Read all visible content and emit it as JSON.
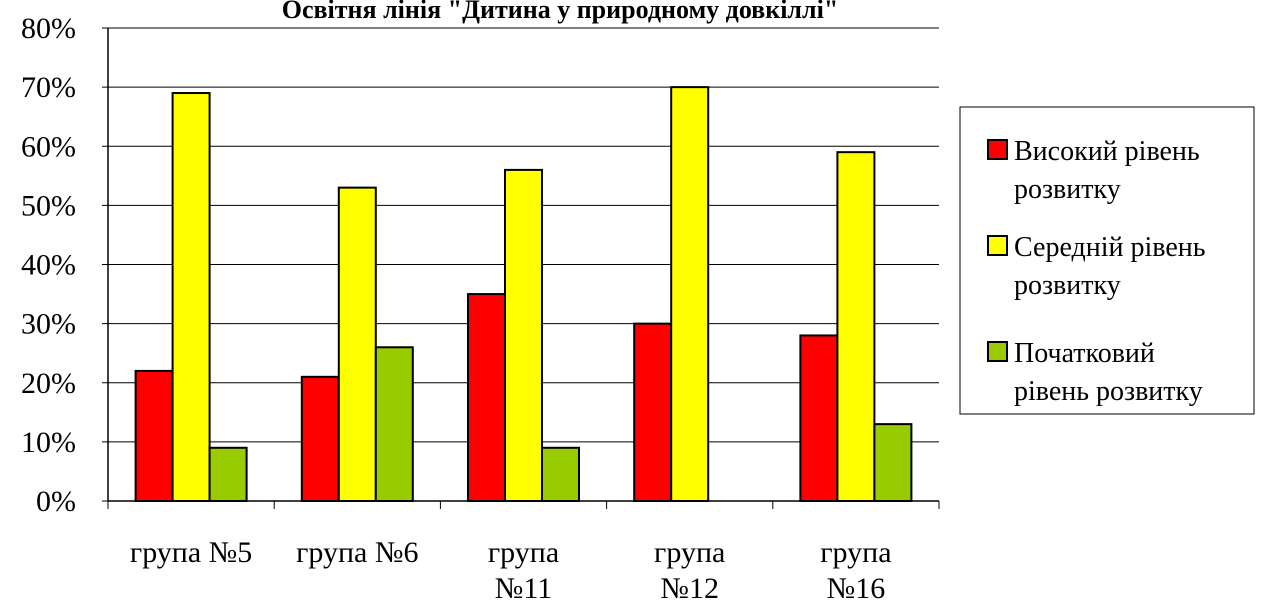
{
  "chart_data": {
    "type": "bar",
    "title": "Освітня лінія \"Дитина у природному довкіллі\"",
    "xlabel": "",
    "ylabel": "",
    "ylim": [
      0,
      80
    ],
    "y_unit": "%",
    "y_ticks": [
      "0%",
      "10%",
      "20%",
      "30%",
      "40%",
      "50%",
      "60%",
      "70%",
      "80%"
    ],
    "grid": true,
    "legend_position": "right",
    "categories": [
      [
        "група №5"
      ],
      [
        "група №6"
      ],
      [
        "група",
        "№11"
      ],
      [
        "група",
        "№12"
      ],
      [
        "група",
        "№16"
      ]
    ],
    "series": [
      {
        "name": [
          "Високий рівень",
          "розвитку"
        ],
        "color": "#ff0000",
        "values": [
          22,
          21,
          35,
          30,
          28
        ]
      },
      {
        "name": [
          "Середній рівень",
          "розвитку"
        ],
        "color": "#ffff00",
        "values": [
          69,
          53,
          56,
          70,
          59
        ]
      },
      {
        "name": [
          "Початковий",
          "рівень розвитку"
        ],
        "color": "#99cc00",
        "values": [
          9,
          26,
          9,
          null,
          13
        ]
      }
    ]
  }
}
